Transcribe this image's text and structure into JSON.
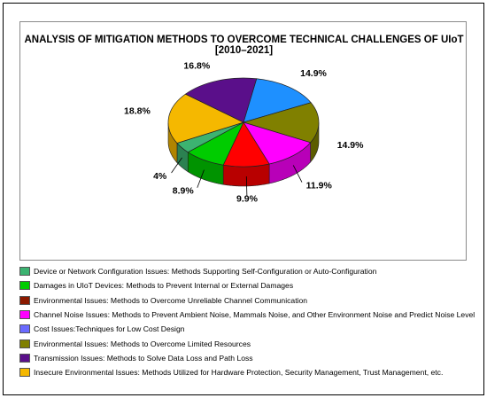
{
  "chart_data": {
    "type": "pie",
    "title": "ANALYSIS OF MITIGATION METHODS TO OVERCOME TECHNICAL CHALLENGES OF UIoT [2010–2021]",
    "slices": [
      {
        "name": "Cost Issues:Techniques for Low Cost Design",
        "value": 14.9,
        "label": "14.9%",
        "color": "#1e90ff"
      },
      {
        "name": "Environmental Issues: Methods to Overcome Limited Resources",
        "value": 14.9,
        "label": "14.9%",
        "color": "#808000"
      },
      {
        "name": "Channel Noise Issues: Methods to Prevent Ambient Noise, Mammals Noise, and Other Environment Noise and Predict Noise Level",
        "value": 11.9,
        "label": "11.9%",
        "color": "#ff00ff"
      },
      {
        "name": "Environmental Issues: Methods to Overcome Unreliable Channel Communication",
        "value": 9.9,
        "label": "9.9%",
        "color": "#ff0000"
      },
      {
        "name": "Damages in UIoT Devices: Methods to Prevent Internal or External Damages",
        "value": 8.9,
        "label": "8.9%",
        "color": "#00cc00"
      },
      {
        "name": "Device or Network Configuration Issues: Methods Supporting Self-Configuration or Auto-Configuration",
        "value": 4.0,
        "label": "4%",
        "color": "#3cb371"
      },
      {
        "name": "Insecure Environmental Issues: Methods Utilized for Hardware Protection, Security Management, Trust Management, etc.",
        "value": 18.8,
        "label": "18.8%",
        "color": "#f5b800"
      },
      {
        "name": "Transmission Issues: Methods to Solve Data Loss and Path Loss",
        "value": 16.8,
        "label": "16.8%",
        "color": "#5a0f8a"
      }
    ],
    "legend": [
      {
        "label": "Device or Network Configuration Issues: Methods Supporting Self-Configuration or Auto-Configuration",
        "color": "#3cb371"
      },
      {
        "label": "Damages in UIoT Devices: Methods to Prevent Internal or External Damages",
        "color": "#00cc00"
      },
      {
        "label": "Environmental Issues: Methods to Overcome Unreliable Channel Communication",
        "color": "#8b1a00"
      },
      {
        "label": "Channel Noise Issues: Methods to Prevent Ambient Noise, Mammals Noise, and Other Environment Noise and Predict Noise Level",
        "color": "#ff00ff"
      },
      {
        "label": "Cost Issues:Techniques for Low Cost Design",
        "color": "#6a6aff"
      },
      {
        "label": "Environmental Issues: Methods to Overcome Limited Resources",
        "color": "#808000"
      },
      {
        "label": "Transmission Issues: Methods to Solve Data Loss and Path Loss",
        "color": "#5a0f8a"
      },
      {
        "label": "Insecure Environmental Issues: Methods Utilized for Hardware Protection, Security Management, Trust Management, etc.",
        "color": "#f5b800"
      }
    ],
    "legend_placement": "bottom",
    "pie_style": "3d"
  }
}
